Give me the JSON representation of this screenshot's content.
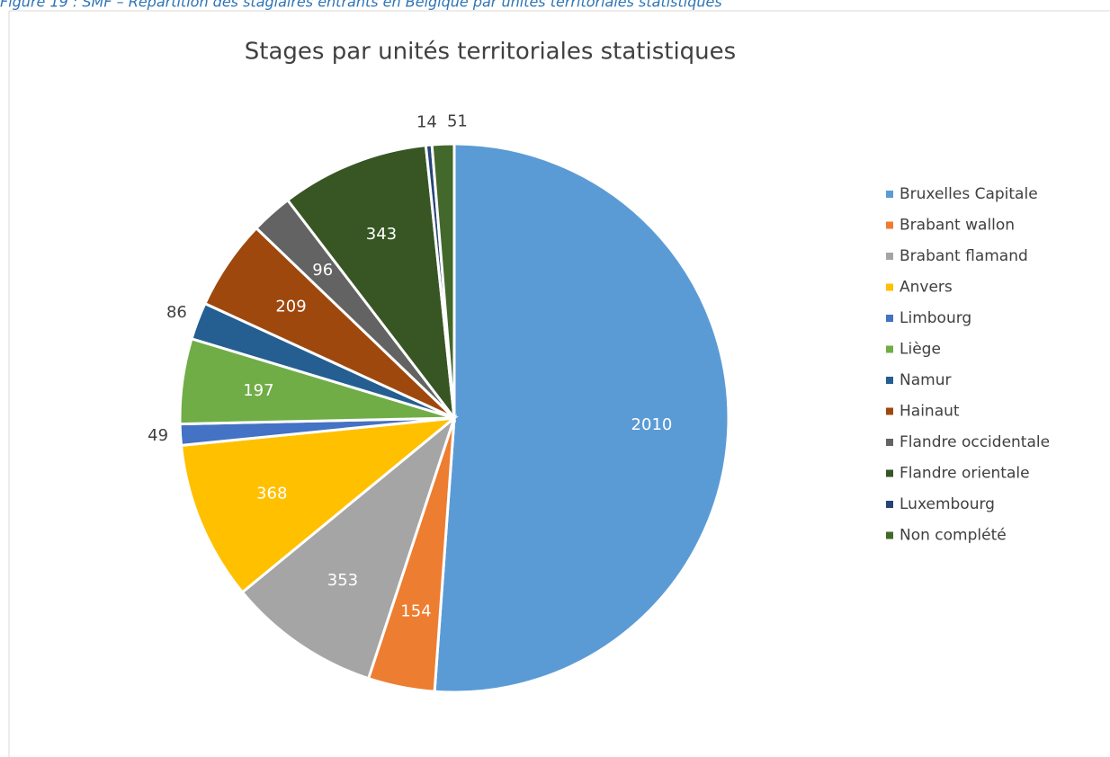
{
  "caption": "Figure 19 : SMF – Répartition des stagiaires entrants en Belgique par unités territoriales statistiques",
  "chart_data": {
    "type": "pie",
    "title": "Stages par unités territoriales statistiques",
    "categories": [
      "Bruxelles Capitale",
      "Brabant wallon",
      "Brabant flamand",
      "Anvers",
      "Limbourg",
      "Liège",
      "Namur",
      "Hainaut",
      "Flandre occidentale",
      "Flandre orientale",
      "Luxembourg",
      "Non complété"
    ],
    "values": [
      2010,
      154,
      353,
      368,
      49,
      197,
      86,
      209,
      96,
      343,
      14,
      51
    ],
    "colors": [
      "#5b9bd5",
      "#ed7d31",
      "#a5a5a5",
      "#ffc000",
      "#4472c4",
      "#70ad47",
      "#255e91",
      "#9e480e",
      "#636363",
      "#375623",
      "#264478",
      "#43682b"
    ],
    "legend": "right"
  }
}
